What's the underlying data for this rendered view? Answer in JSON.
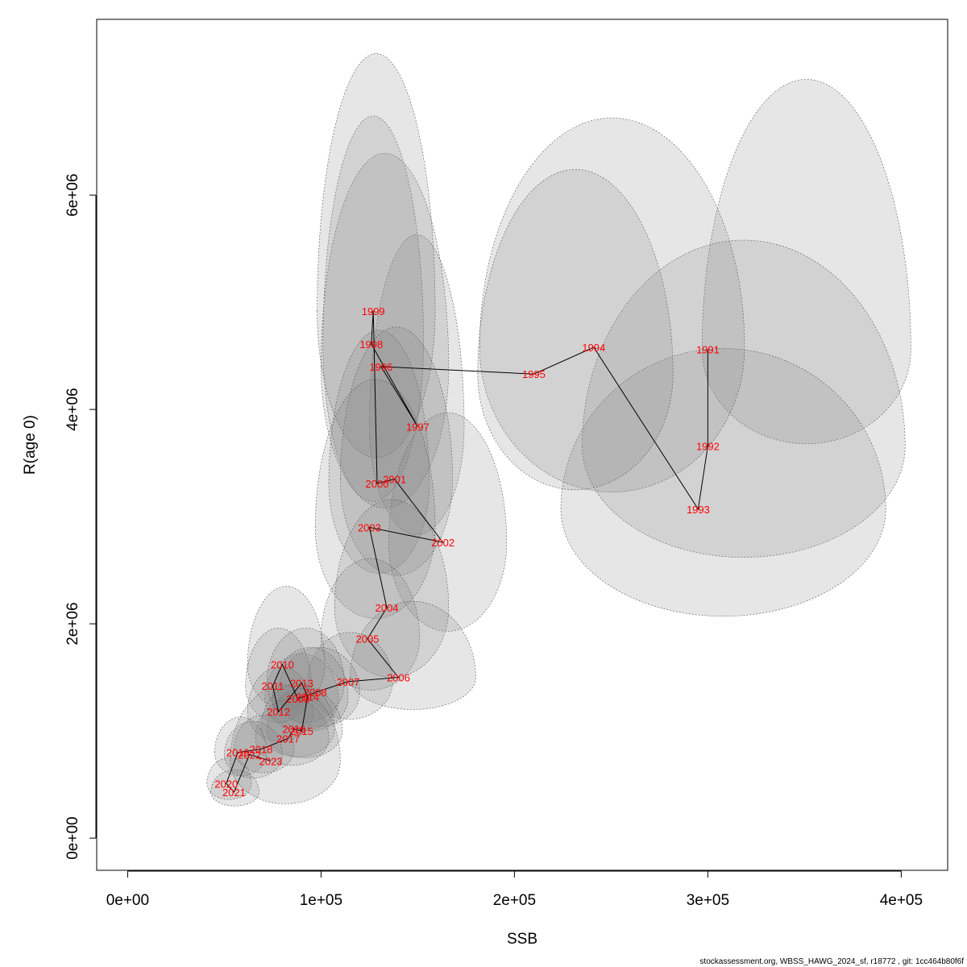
{
  "chart_data": {
    "type": "scatter",
    "xlabel": "SSB",
    "ylabel": "R(age 0)",
    "xlim": [
      -16000,
      424000
    ],
    "ylim": [
      -300000,
      7640000
    ],
    "x_ticks": [
      {
        "value": 0,
        "label": "0e+00"
      },
      {
        "value": 100000,
        "label": "1e+05"
      },
      {
        "value": 200000,
        "label": "2e+05"
      },
      {
        "value": 300000,
        "label": "3e+05"
      },
      {
        "value": 400000,
        "label": "4e+05"
      }
    ],
    "y_ticks": [
      {
        "value": 0,
        "label": "0e+00"
      },
      {
        "value": 2000000,
        "label": "2e+06"
      },
      {
        "value": 4000000,
        "label": "4e+06"
      },
      {
        "value": 6000000,
        "label": "6e+06"
      }
    ],
    "points": [
      {
        "year": "1991",
        "x": 300000,
        "y": 4560000,
        "ex": [
          297000,
          405000
        ],
        "ey": [
          3680000,
          7080000
        ]
      },
      {
        "year": "1992",
        "x": 300000,
        "y": 3660000,
        "ex": [
          235000,
          402000
        ],
        "ey": [
          2620000,
          5580000
        ]
      },
      {
        "year": "1993",
        "x": 295000,
        "y": 3070000,
        "ex": [
          224000,
          392000
        ],
        "ey": [
          2070000,
          4570000
        ]
      },
      {
        "year": "1994",
        "x": 241000,
        "y": 4580000,
        "ex": [
          182000,
          319000
        ],
        "ey": [
          3230000,
          6720000
        ]
      },
      {
        "year": "1995",
        "x": 210000,
        "y": 4330000,
        "ex": [
          181000,
          282000
        ],
        "ey": [
          3250000,
          6240000
        ]
      },
      {
        "year": "1996",
        "x": 131000,
        "y": 4400000,
        "ex": [
          100000,
          166000
        ],
        "ey": [
          3080000,
          6390000
        ]
      },
      {
        "year": "1997",
        "x": 150000,
        "y": 3840000,
        "ex": [
          125000,
          174000
        ],
        "ey": [
          2830000,
          5630000
        ]
      },
      {
        "year": "1998",
        "x": 126000,
        "y": 4610000,
        "ex": [
          101000,
          153000
        ],
        "ey": [
          3140000,
          6740000
        ]
      },
      {
        "year": "1999",
        "x": 127000,
        "y": 4920000,
        "ex": [
          98000,
          159000
        ],
        "ey": [
          3550000,
          7320000
        ]
      },
      {
        "year": "2000",
        "x": 129000,
        "y": 3310000,
        "ex": [
          104000,
          156000
        ],
        "ey": [
          2470000,
          4740000
        ]
      },
      {
        "year": "2001",
        "x": 138000,
        "y": 3350000,
        "ex": [
          110000,
          168000
        ],
        "ey": [
          2450000,
          4770000
        ]
      },
      {
        "year": "2002",
        "x": 163000,
        "y": 2760000,
        "ex": [
          135000,
          196000
        ],
        "ey": [
          1930000,
          3970000
        ]
      },
      {
        "year": "2003",
        "x": 125000,
        "y": 2900000,
        "ex": [
          97000,
          159000
        ],
        "ey": [
          2050000,
          4280000
        ]
      },
      {
        "year": "2004",
        "x": 134000,
        "y": 2150000,
        "ex": [
          107000,
          166000
        ],
        "ey": [
          1500000,
          3160000
        ]
      },
      {
        "year": "2005",
        "x": 124000,
        "y": 1860000,
        "ex": [
          100000,
          151000
        ],
        "ey": [
          1380000,
          2610000
        ]
      },
      {
        "year": "2006",
        "x": 140000,
        "y": 1500000,
        "ex": [
          115000,
          180000
        ],
        "ey": [
          1200000,
          2210000
        ]
      },
      {
        "year": "2007",
        "x": 114000,
        "y": 1460000,
        "ex": [
          93000,
          137000
        ],
        "ey": [
          1110000,
          1920000
        ]
      },
      {
        "year": "2008",
        "x": 97000,
        "y": 1360000,
        "ex": [
          78000,
          120000
        ],
        "ey": [
          1040000,
          1780000
        ]
      },
      {
        "year": "2009",
        "x": 88000,
        "y": 1300000,
        "ex": [
          71000,
          109000
        ],
        "ey": [
          1000000,
          1720000
        ]
      },
      {
        "year": "2010",
        "x": 80000,
        "y": 1620000,
        "ex": [
          62000,
          102000
        ],
        "ey": [
          1200000,
          2350000
        ]
      },
      {
        "year": "2011",
        "x": 75000,
        "y": 1420000,
        "ex": [
          61000,
          95000
        ],
        "ey": [
          1080000,
          1960000
        ]
      },
      {
        "year": "2012",
        "x": 78000,
        "y": 1180000,
        "ex": [
          62000,
          96000
        ],
        "ey": [
          900000,
          1600000
        ]
      },
      {
        "year": "2013",
        "x": 90000,
        "y": 1450000,
        "ex": [
          72000,
          112000
        ],
        "ey": [
          1080000,
          1960000
        ]
      },
      {
        "year": "2014",
        "x": 93000,
        "y": 1320000,
        "ex": [
          75000,
          114000
        ],
        "ey": [
          1000000,
          1780000
        ]
      },
      {
        "year": "2015",
        "x": 90000,
        "y": 1000000,
        "ex": [
          72000,
          111000
        ],
        "ey": [
          750000,
          1400000
        ]
      },
      {
        "year": "2016",
        "x": 86000,
        "y": 1020000,
        "ex": [
          69000,
          107000
        ],
        "ey": [
          760000,
          1440000
        ]
      },
      {
        "year": "2017",
        "x": 83000,
        "y": 930000,
        "ex": [
          66000,
          104000
        ],
        "ey": [
          680000,
          1300000
        ]
      },
      {
        "year": "2018",
        "x": 69000,
        "y": 830000,
        "ex": [
          55000,
          86000
        ],
        "ey": [
          610000,
          1150000
        ]
      },
      {
        "year": "2019",
        "x": 57000,
        "y": 800000,
        "ex": [
          45000,
          72000
        ],
        "ey": [
          580000,
          1130000
        ]
      },
      {
        "year": "2020",
        "x": 51000,
        "y": 510000,
        "ex": [
          41000,
          64000
        ],
        "ey": [
          360000,
          750000
        ]
      },
      {
        "year": "2021",
        "x": 55000,
        "y": 430000,
        "ex": [
          43000,
          68000
        ],
        "ey": [
          300000,
          640000
        ]
      },
      {
        "year": "2022",
        "x": 63000,
        "y": 780000,
        "ex": [
          50000,
          80000
        ],
        "ey": [
          560000,
          1090000
        ]
      },
      {
        "year": "2023",
        "x": 74000,
        "y": 720000,
        "ex": [
          53000,
          110000
        ],
        "ey": [
          320000,
          1430000
        ]
      }
    ]
  },
  "footer": "stockassessment.org, WBSS_HAWG_2024_sf, r18772 , git: 1cc464b80f6f"
}
